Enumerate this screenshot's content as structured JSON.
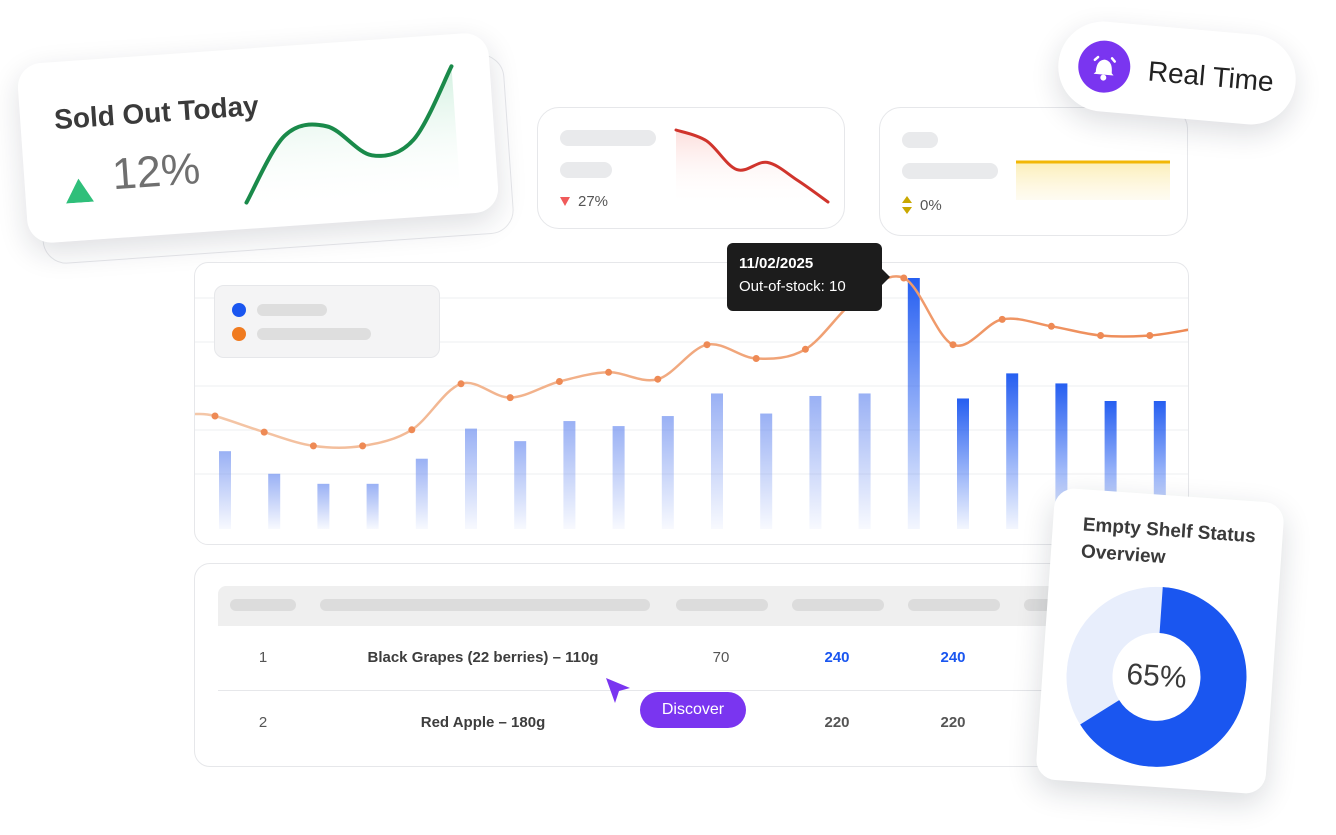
{
  "sold_out_card": {
    "title": "Sold Out Today",
    "trend": "up",
    "value": "12%",
    "sparkline": [
      0.05,
      0.55,
      0.6,
      0.35,
      0.45,
      1.0
    ]
  },
  "stat_card_2": {
    "trend": "down",
    "value": "27%",
    "sparkline": [
      1.0,
      0.85,
      0.45,
      0.55,
      0.3,
      0.0
    ]
  },
  "stat_card_3": {
    "trend": "flat",
    "value": "0%"
  },
  "real_time": {
    "label": "Real Time"
  },
  "tooltip": {
    "date": "11/02/2025",
    "text": "Out-of-stock: 10"
  },
  "table": {
    "rows": [
      {
        "index": "1",
        "name": "Black Grapes (22 berries) – 110g",
        "col3": "70",
        "col4": "240",
        "col5": "240"
      },
      {
        "index": "2",
        "name": "Red Apple – 180g",
        "col3": "",
        "col4": "220",
        "col5": "220"
      }
    ]
  },
  "discover": {
    "label": "Discover"
  },
  "empty_shelf": {
    "title": "Empty Shelf Status Overview",
    "value_label": "65%",
    "percent": 65
  },
  "chart_data": {
    "type": "bar",
    "bar_values": [
      3.1,
      2.2,
      1.8,
      1.8,
      2.8,
      4.0,
      3.5,
      4.3,
      4.1,
      4.5,
      5.4,
      4.6,
      5.3,
      5.4,
      10.0,
      5.2,
      6.2,
      5.8,
      5.1,
      5.1
    ],
    "line_values": [
      4.0,
      3.3,
      2.7,
      2.7,
      3.4,
      5.4,
      4.8,
      5.5,
      5.9,
      5.6,
      7.1,
      6.5,
      6.9,
      9.0,
      10.0,
      7.1,
      8.2,
      7.9,
      7.5,
      7.5
    ],
    "series_colors": {
      "bars": "#1a56f0",
      "line": "#f08a4b"
    },
    "tooltip_index": 14
  },
  "colors": {
    "green": "#1a8a4a",
    "red": "#d0342c",
    "yellow": "#f2b705",
    "blue": "#1a56f0",
    "orange": "#f07b20",
    "purple": "#7a35f0",
    "donut_light": "#e8eefc"
  }
}
